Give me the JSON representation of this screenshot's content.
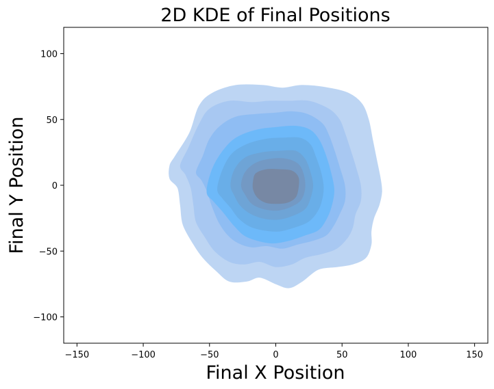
{
  "chart_data": {
    "type": "kde2d",
    "title": "2D KDE of Final Positions",
    "xlabel": "Final X Position",
    "ylabel": "Final Y Position",
    "xlim": [
      -160,
      160
    ],
    "ylim": [
      -120,
      120
    ],
    "xticks": [
      -150,
      -100,
      -50,
      0,
      50,
      100,
      150
    ],
    "yticks": [
      -100,
      -50,
      0,
      50,
      100
    ],
    "xtick_labels": [
      "−150",
      "−100",
      "−50",
      "0",
      "50",
      "100",
      "150"
    ],
    "ytick_labels": [
      "−100",
      "−50",
      "0",
      "50",
      "100"
    ],
    "grid": false,
    "levels": [
      {
        "level": 1,
        "color": "#bdd5f3",
        "points": [
          [
            -80,
            15
          ],
          [
            -76,
            22
          ],
          [
            -65,
            40
          ],
          [
            -58,
            60
          ],
          [
            -48,
            70
          ],
          [
            -30,
            76
          ],
          [
            -10,
            76
          ],
          [
            5,
            74
          ],
          [
            20,
            76
          ],
          [
            40,
            74
          ],
          [
            55,
            70
          ],
          [
            65,
            62
          ],
          [
            70,
            50
          ],
          [
            73,
            35
          ],
          [
            76,
            20
          ],
          [
            79,
            5
          ],
          [
            80,
            -5
          ],
          [
            78,
            -15
          ],
          [
            74,
            -25
          ],
          [
            72,
            -35
          ],
          [
            72,
            -45
          ],
          [
            68,
            -55
          ],
          [
            58,
            -60
          ],
          [
            46,
            -62
          ],
          [
            32,
            -64
          ],
          [
            20,
            -73
          ],
          [
            10,
            -78
          ],
          [
            0,
            -75
          ],
          [
            -12,
            -70
          ],
          [
            -22,
            -73
          ],
          [
            -35,
            -73
          ],
          [
            -45,
            -65
          ],
          [
            -55,
            -55
          ],
          [
            -62,
            -45
          ],
          [
            -70,
            -30
          ],
          [
            -72,
            -15
          ],
          [
            -74,
            -2
          ],
          [
            -80,
            5
          ]
        ]
      },
      {
        "level": 2,
        "color": "#a8c8f2",
        "points": [
          [
            -72,
            15
          ],
          [
            -66,
            28
          ],
          [
            -58,
            46
          ],
          [
            -50,
            58
          ],
          [
            -35,
            64
          ],
          [
            -18,
            63
          ],
          [
            -5,
            64
          ],
          [
            10,
            64
          ],
          [
            25,
            64
          ],
          [
            40,
            58
          ],
          [
            48,
            50
          ],
          [
            52,
            40
          ],
          [
            56,
            28
          ],
          [
            60,
            15
          ],
          [
            64,
            0
          ],
          [
            64,
            -12
          ],
          [
            60,
            -22
          ],
          [
            58,
            -32
          ],
          [
            54,
            -40
          ],
          [
            46,
            -48
          ],
          [
            35,
            -52
          ],
          [
            22,
            -55
          ],
          [
            12,
            -60
          ],
          [
            0,
            -62
          ],
          [
            -12,
            -58
          ],
          [
            -24,
            -60
          ],
          [
            -35,
            -58
          ],
          [
            -46,
            -50
          ],
          [
            -53,
            -40
          ],
          [
            -60,
            -28
          ],
          [
            -62,
            -15
          ],
          [
            -64,
            -2
          ],
          [
            -68,
            8
          ]
        ]
      },
      {
        "level": 3,
        "color": "#8fbdf3",
        "points": [
          [
            -60,
            10
          ],
          [
            -55,
            22
          ],
          [
            -50,
            35
          ],
          [
            -42,
            45
          ],
          [
            -30,
            52
          ],
          [
            -15,
            54
          ],
          [
            0,
            55
          ],
          [
            12,
            56
          ],
          [
            24,
            54
          ],
          [
            35,
            47
          ],
          [
            40,
            38
          ],
          [
            44,
            27
          ],
          [
            48,
            14
          ],
          [
            52,
            0
          ],
          [
            52,
            -12
          ],
          [
            48,
            -22
          ],
          [
            44,
            -30
          ],
          [
            38,
            -38
          ],
          [
            28,
            -42
          ],
          [
            16,
            -45
          ],
          [
            5,
            -48
          ],
          [
            -7,
            -46
          ],
          [
            -18,
            -47
          ],
          [
            -28,
            -44
          ],
          [
            -36,
            -38
          ],
          [
            -43,
            -28
          ],
          [
            -48,
            -16
          ],
          [
            -52,
            -4
          ],
          [
            -56,
            4
          ]
        ]
      },
      {
        "level": 4,
        "color": "#6db9f9",
        "points": [
          [
            -52,
            -5
          ],
          [
            -48,
            12
          ],
          [
            -40,
            26
          ],
          [
            -30,
            36
          ],
          [
            -15,
            42
          ],
          [
            0,
            44
          ],
          [
            15,
            45
          ],
          [
            26,
            42
          ],
          [
            33,
            34
          ],
          [
            38,
            22
          ],
          [
            42,
            8
          ],
          [
            44,
            -4
          ],
          [
            42,
            -16
          ],
          [
            38,
            -26
          ],
          [
            32,
            -34
          ],
          [
            22,
            -38
          ],
          [
            10,
            -42
          ],
          [
            -2,
            -44
          ],
          [
            -14,
            -42
          ],
          [
            -24,
            -38
          ],
          [
            -32,
            -30
          ],
          [
            -40,
            -20
          ],
          [
            -47,
            -12
          ]
        ]
      },
      {
        "level": 5,
        "color": "#69aee8",
        "points": [
          [
            -44,
            -3
          ],
          [
            -40,
            12
          ],
          [
            -33,
            24
          ],
          [
            -22,
            31
          ],
          [
            -8,
            35
          ],
          [
            5,
            36
          ],
          [
            18,
            36
          ],
          [
            26,
            31
          ],
          [
            30,
            22
          ],
          [
            34,
            10
          ],
          [
            36,
            -2
          ],
          [
            34,
            -14
          ],
          [
            30,
            -22
          ],
          [
            24,
            -28
          ],
          [
            14,
            -32
          ],
          [
            2,
            -35
          ],
          [
            -10,
            -34
          ],
          [
            -20,
            -31
          ],
          [
            -28,
            -25
          ],
          [
            -34,
            -17
          ],
          [
            -40,
            -10
          ]
        ]
      },
      {
        "level": 6,
        "color": "#6ea4d6",
        "points": [
          [
            -34,
            0
          ],
          [
            -31,
            12
          ],
          [
            -23,
            21
          ],
          [
            -10,
            25
          ],
          [
            3,
            26
          ],
          [
            15,
            26
          ],
          [
            22,
            20
          ],
          [
            26,
            10
          ],
          [
            28,
            0
          ],
          [
            26,
            -10
          ],
          [
            22,
            -18
          ],
          [
            13,
            -23
          ],
          [
            2,
            -26
          ],
          [
            -10,
            -25
          ],
          [
            -20,
            -21
          ],
          [
            -27,
            -15
          ],
          [
            -31,
            -8
          ]
        ]
      },
      {
        "level": 7,
        "color": "#7399c4",
        "points": [
          [
            -26,
            0
          ],
          [
            -23,
            10
          ],
          [
            -15,
            17
          ],
          [
            -4,
            20
          ],
          [
            8,
            20
          ],
          [
            17,
            16
          ],
          [
            21,
            8
          ],
          [
            22,
            -2
          ],
          [
            19,
            -11
          ],
          [
            12,
            -16
          ],
          [
            2,
            -19
          ],
          [
            -9,
            -18
          ],
          [
            -18,
            -14
          ],
          [
            -23,
            -7
          ]
        ]
      },
      {
        "level": 8,
        "color": "#7788a4",
        "points": [
          [
            -17,
            3
          ],
          [
            -15,
            9
          ],
          [
            -7,
            12
          ],
          [
            3,
            12
          ],
          [
            12,
            11
          ],
          [
            17,
            6
          ],
          [
            17,
            -2
          ],
          [
            15,
            -9
          ],
          [
            9,
            -13
          ],
          [
            0,
            -14
          ],
          [
            -8,
            -13
          ],
          [
            -14,
            -9
          ],
          [
            -17,
            -3
          ]
        ]
      }
    ]
  }
}
